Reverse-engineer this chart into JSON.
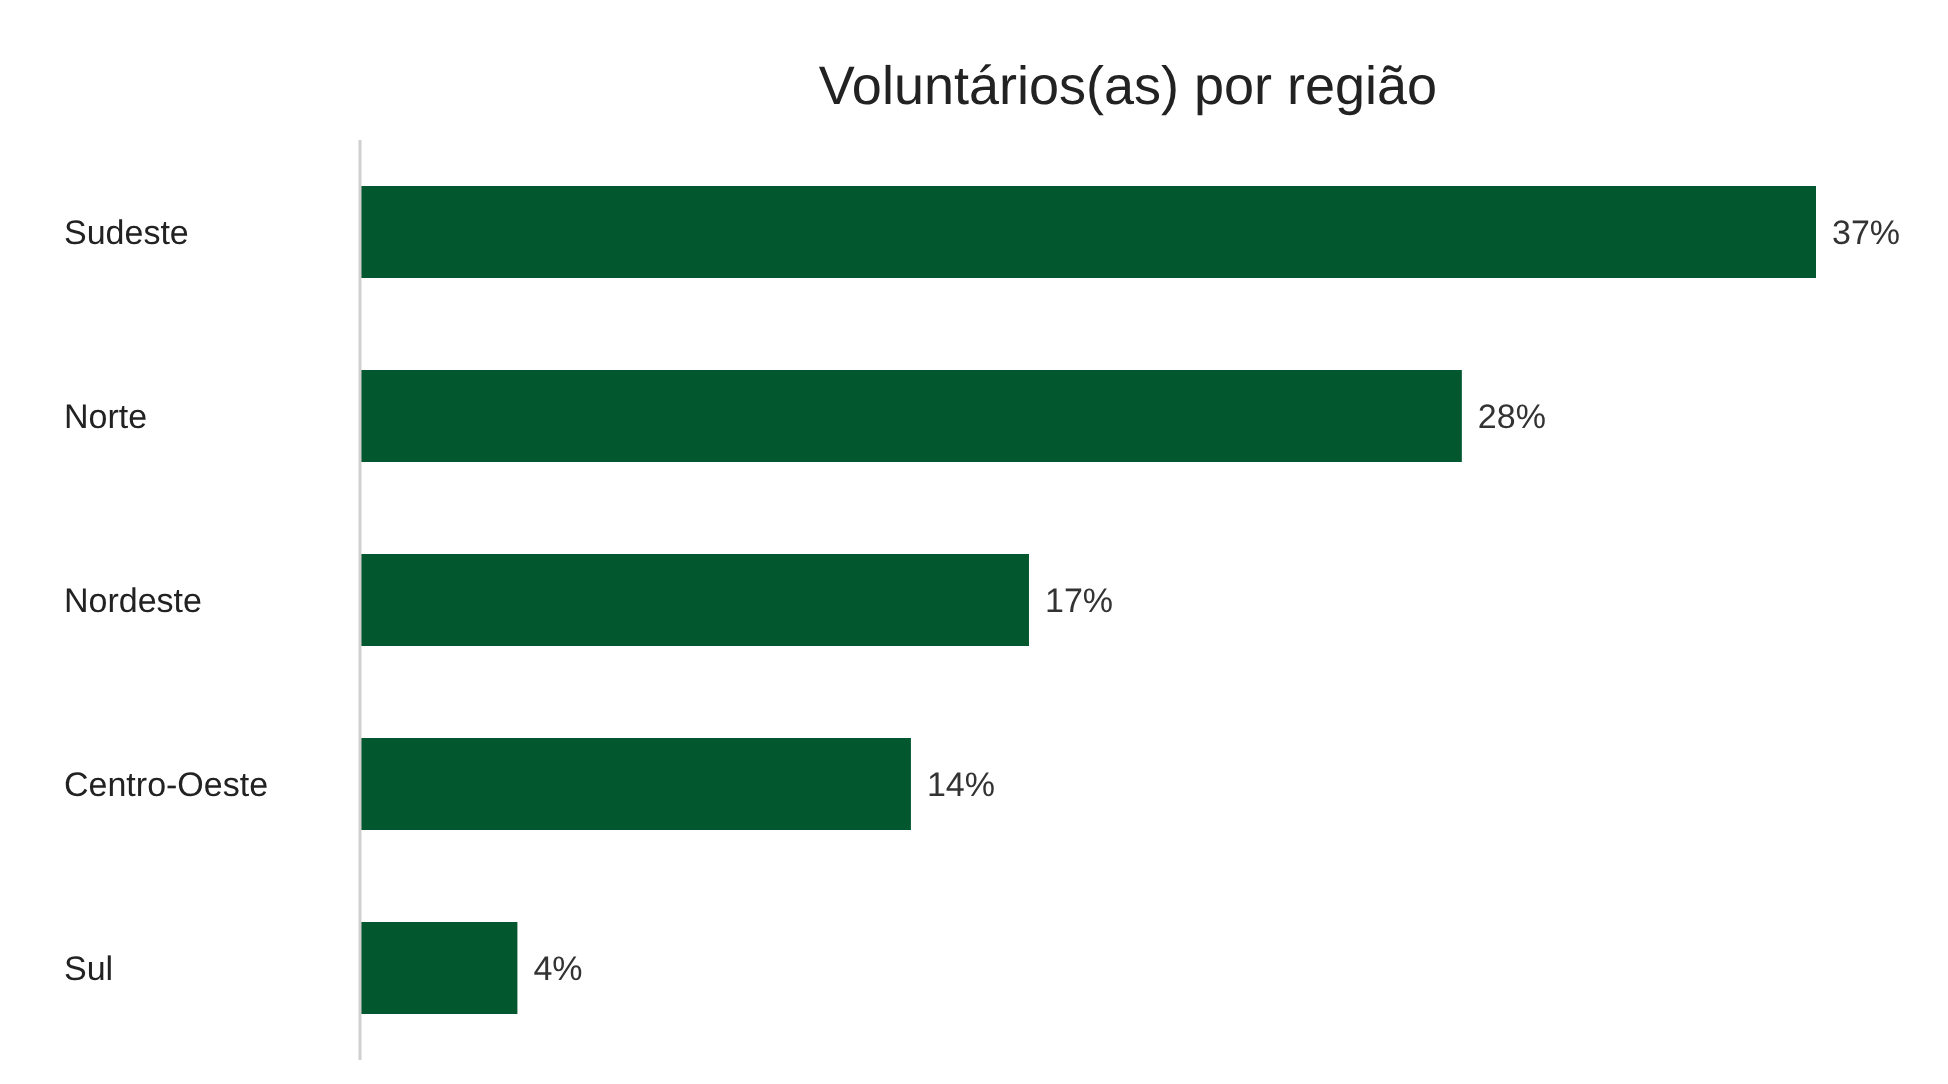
{
  "chart_data": {
    "type": "bar",
    "orientation": "horizontal",
    "title": "Voluntários(as) por região",
    "categories": [
      "Sudeste",
      "Norte",
      "Nordeste",
      "Centro-Oeste",
      "Sul"
    ],
    "values": [
      37,
      28,
      17,
      14,
      4
    ],
    "value_labels": [
      "37%",
      "28%",
      "17%",
      "14%",
      "4%"
    ],
    "color": "#03572f",
    "grid": false
  }
}
